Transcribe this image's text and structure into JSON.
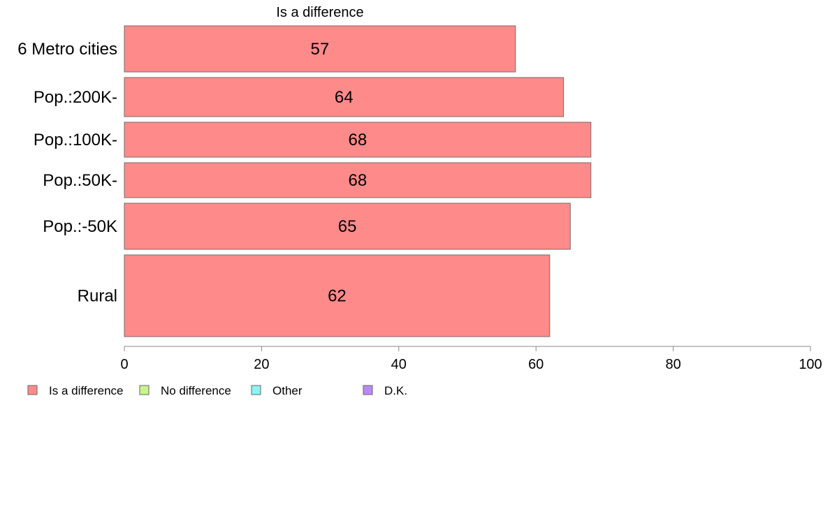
{
  "chart_data": {
    "type": "bar",
    "orientation": "horizontal",
    "title": "Is a difference",
    "categories": [
      "6 Metro cities",
      "Pop.:200K-",
      "Pop.:100K-",
      "Pop.:50K-",
      "Pop.:-50K",
      "Rural"
    ],
    "series": [
      {
        "name": "Is a difference",
        "values": [
          57,
          64,
          68,
          68,
          65,
          62
        ]
      }
    ],
    "data_labels": [
      "57",
      "64",
      "68",
      "68",
      "65",
      "62"
    ],
    "xlim": [
      0,
      100
    ],
    "x_ticks": [
      0,
      20,
      40,
      60,
      80,
      100
    ],
    "x_tick_labels": [
      "0",
      "20",
      "40",
      "60",
      "80",
      "100"
    ],
    "xlabel": "",
    "ylabel": "",
    "grid": false,
    "legend_position": "bottom-left",
    "legend": [
      {
        "label": "Is a difference",
        "color": "#ff8a8a"
      },
      {
        "label": "No difference",
        "color": "#c8f58a"
      },
      {
        "label": "Other",
        "color": "#8af5f5"
      },
      {
        "label": "D.K.",
        "color": "#b98af5"
      }
    ],
    "bar_color": "#ff8a8a",
    "bar_border_color": "#7a6a6a",
    "axis_color": "#888888"
  }
}
